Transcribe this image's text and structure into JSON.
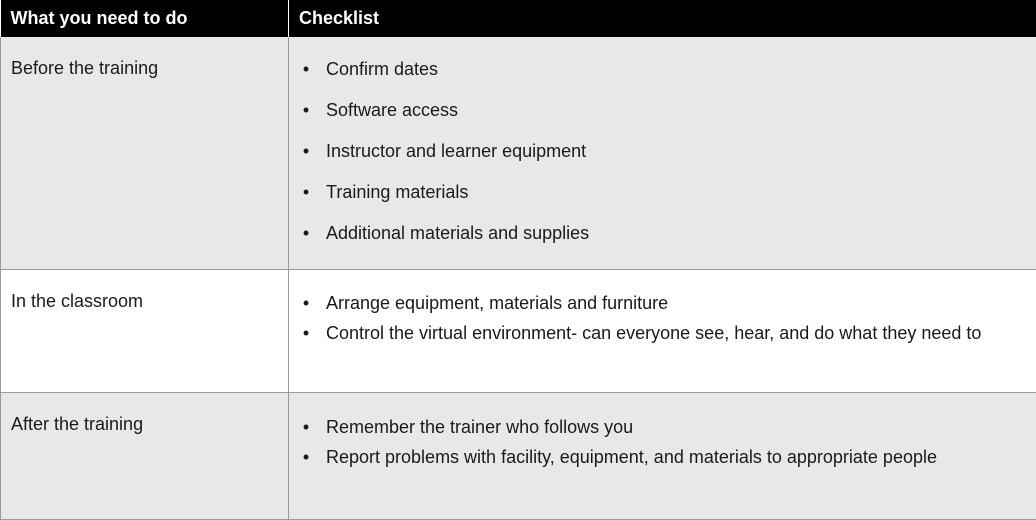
{
  "table": {
    "headers": {
      "task": "What you need to do",
      "checklist": "Checklist"
    },
    "rows": [
      {
        "task": "Before the training",
        "items": [
          "Confirm dates",
          "Software access",
          "Instructor and learner equipment",
          "Training materials",
          "Additional materials and supplies"
        ]
      },
      {
        "task": "In the classroom",
        "items": [
          "Arrange equipment, materials and furniture",
          "Control the virtual environment- can everyone see, hear, and do what they need to"
        ]
      },
      {
        "task": "After the training",
        "items": [
          "Remember the trainer who follows you",
          "Report problems with facility, equipment, and materials to appropriate people"
        ]
      }
    ],
    "bullet_glyph": "•",
    "colors": {
      "header_bg": "#000000",
      "header_text": "#ffffff",
      "shaded_row_bg": "#e8e8e8",
      "border": "#9a9a9a"
    }
  }
}
